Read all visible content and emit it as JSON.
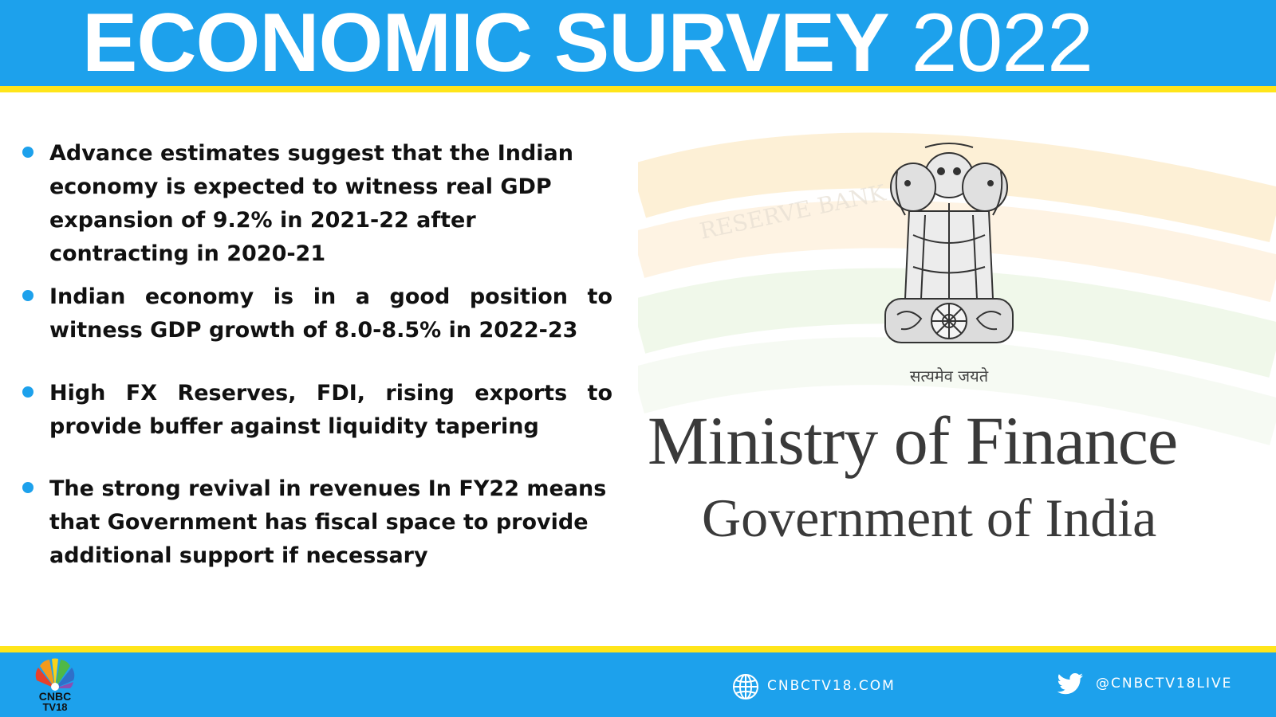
{
  "header": {
    "title_bold": "ECONOMIC SURVEY",
    "title_year": "2022"
  },
  "bullets": [
    "Advance estimates suggest that the Indian economy is expected to witness real GDP expansion of 9.2% in 2021-22 after contracting in 2020-21",
    "Indian economy is in a good position to witness GDP growth of 8.0-8.5% in 2022-23",
    "High FX Reserves, FDI, rising exports to provide buffer against liquidity tapering",
    "The strong revival in revenues In FY22 means that Government has fiscal space to provide additional support if necessary"
  ],
  "emblem": {
    "motto": "सत्यमेव जयते",
    "line1": "Ministry of Finance",
    "line2": "Government of India",
    "watermark": "RESERVE BANK"
  },
  "footer": {
    "logo_line1": "CNBC",
    "logo_line2": "TV18",
    "website": "CNBCTV18.COM",
    "twitter": "@CNBCTV18LIVE"
  },
  "colors": {
    "brand_blue": "#1da1ec",
    "stripe_yellow": "#ffe51a",
    "bullet_dot": "#1da1ec",
    "text": "#111111"
  },
  "icons": {
    "bullet": "bullet-dot-icon",
    "emblem": "ashoka-emblem-icon",
    "logo": "cnbc-peacock-logo",
    "website": "globe-icon",
    "twitter": "twitter-bird-icon"
  }
}
